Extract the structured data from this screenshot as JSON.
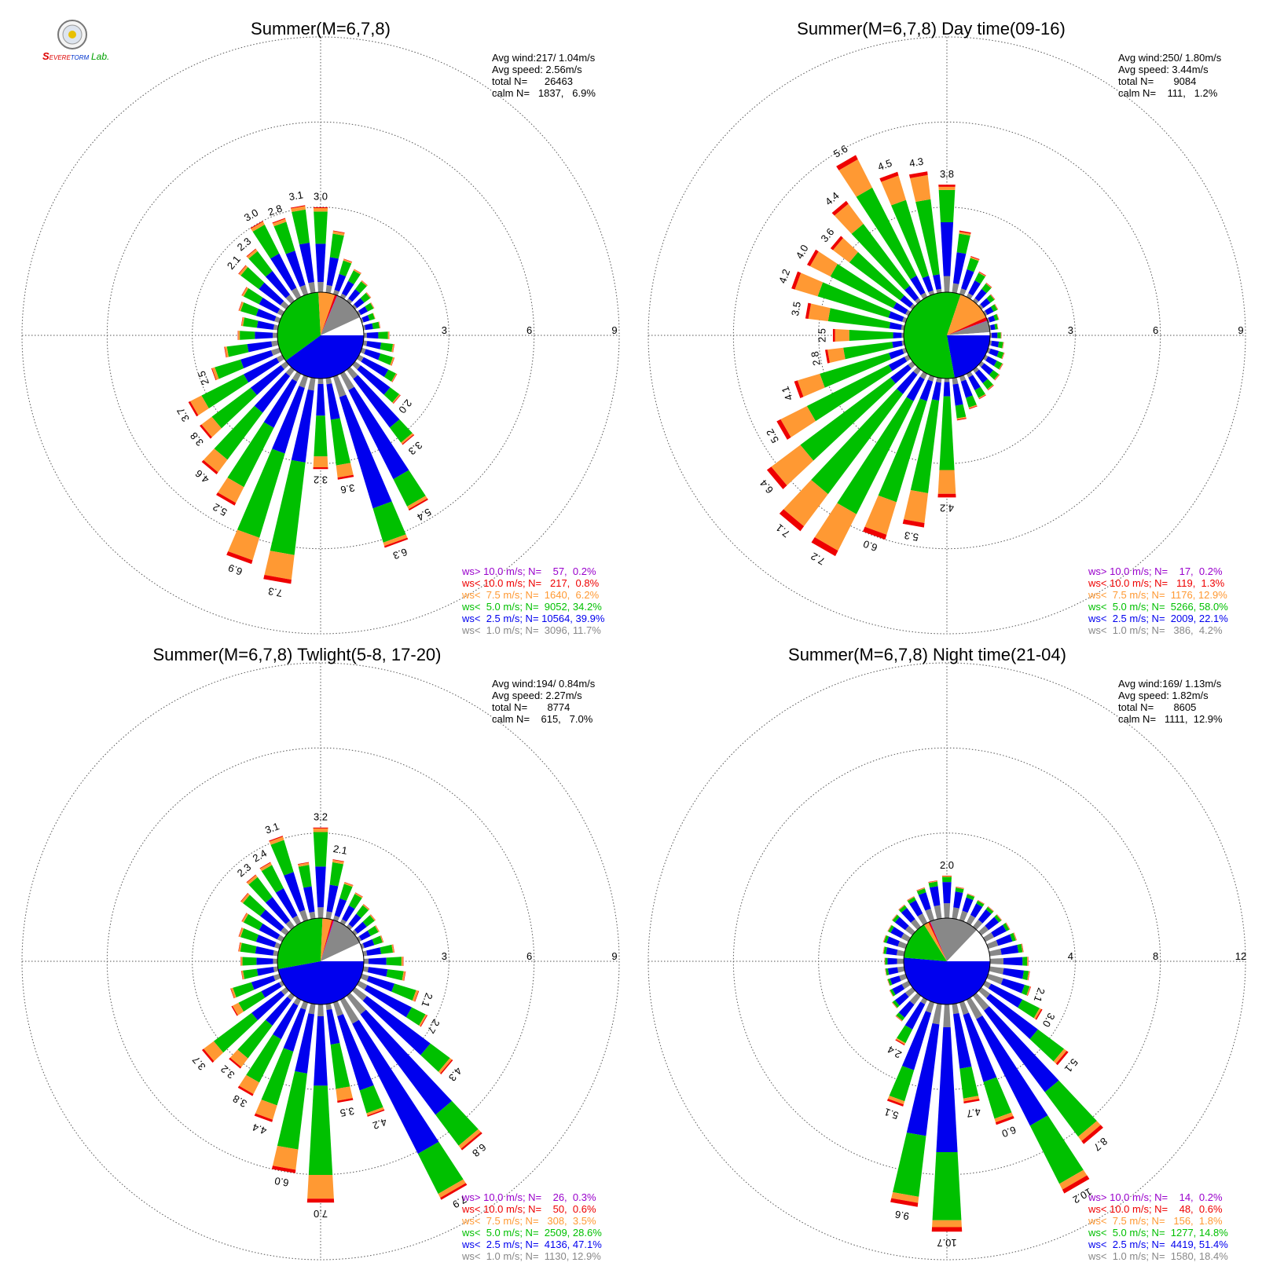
{
  "colors": {
    "calm_fill": "#ffffff",
    "ring": "#555555",
    "speed_bins": [
      "#888888",
      "#0000ee",
      "#00c000",
      "#ff9933",
      "#ee0000",
      "#9900cc"
    ]
  },
  "logo": {
    "line1": "EVERE",
    "line2": "TORM",
    "line3": "Lab.",
    "icon": "severe-storm-lab-seal-icon"
  },
  "chart_data": [
    {
      "type": "polar-bar",
      "title": "Summer(M=6,7,8)",
      "stats": [
        "Avg wind:217/ 1.04m/s",
        "Avg speed: 2.56m/s",
        "total N=      26463",
        "calm N=   1837,   6.9%"
      ],
      "rmax": 9,
      "ring_ticks": [
        "3",
        "6",
        "9"
      ],
      "pie": [
        39.9,
        34.2,
        6.2,
        0.8,
        0.2,
        11.7,
        6.9
      ],
      "legend": [
        "ws> 10.0 m/s; N=    57,  0.2%",
        "ws< 10.0 m/s; N=   217,  0.8%",
        "ws<  7.5 m/s; N=  1640,  6.2%",
        "ws<  5.0 m/s; N=  9052, 34.2%",
        "ws<  2.5 m/s; N= 10564, 39.9%",
        "ws<  1.0 m/s; N=  3096, 11.7%"
      ],
      "directions": [
        0,
        10,
        20,
        30,
        40,
        50,
        60,
        70,
        80,
        90,
        100,
        110,
        120,
        130,
        140,
        150,
        160,
        170,
        180,
        190,
        200,
        210,
        220,
        230,
        240,
        250,
        260,
        270,
        280,
        290,
        300,
        310,
        320,
        330,
        340,
        350
      ],
      "totals": [
        3.0,
        2.2,
        1.3,
        1.1,
        0.9,
        0.7,
        0.6,
        0.5,
        0.6,
        0.9,
        1.1,
        1.2,
        1.5,
        2.0,
        3.3,
        5.4,
        6.3,
        3.6,
        3.2,
        7.3,
        6.9,
        5.2,
        4.6,
        3.8,
        3.7,
        2.5,
        1.9,
        1.4,
        1.3,
        1.5,
        1.6,
        2.1,
        2.3,
        3.0,
        2.8,
        3.1
      ],
      "labels": [
        "3.0",
        "",
        "",
        "",
        "",
        "",
        "",
        "",
        "",
        "",
        "",
        "",
        "",
        "2.0",
        "3.3",
        "5.4",
        "6.3",
        "3.6",
        "3.2",
        "7.3",
        "6.9",
        "5.2",
        "4.6",
        "3.8",
        "3.7",
        "2.5",
        "",
        "",
        "",
        "",
        "",
        "2.1",
        "2.3",
        "3.0",
        "2.8",
        "3.1"
      ]
    },
    {
      "type": "polar-bar",
      "title": "Summer(M=6,7,8) Day time(09-16)",
      "stats": [
        "Avg wind:250/ 1.80m/s",
        "Avg speed: 3.44m/s",
        "total N=       9084",
        "calm N=    111,   1.2%"
      ],
      "rmax": 9,
      "ring_ticks": [
        "3",
        "6",
        "9"
      ],
      "pie": [
        22.1,
        58.0,
        12.9,
        1.3,
        0.2,
        4.2,
        1.2
      ],
      "legend": [
        "ws> 10.0 m/s; N=    17,  0.2%",
        "ws< 10.0 m/s; N=   119,  1.3%",
        "ws<  7.5 m/s; N=  1176, 12.9%",
        "ws<  5.0 m/s; N=  5266, 58.0%",
        "ws<  2.5 m/s; N=  2009, 22.1%",
        "ws<  1.0 m/s; N=   386,  4.2%"
      ],
      "directions": [
        0,
        10,
        20,
        30,
        40,
        50,
        60,
        70,
        80,
        90,
        100,
        110,
        120,
        130,
        140,
        150,
        160,
        170,
        180,
        190,
        200,
        210,
        220,
        230,
        240,
        250,
        260,
        270,
        280,
        290,
        300,
        310,
        320,
        330,
        340,
        350
      ],
      "totals": [
        3.8,
        2.2,
        1.4,
        1.0,
        0.8,
        0.6,
        0.5,
        0.4,
        0.3,
        0.4,
        0.5,
        0.6,
        0.7,
        0.8,
        0.9,
        1.0,
        1.2,
        1.5,
        4.2,
        5.3,
        6.0,
        7.2,
        7.1,
        6.4,
        5.2,
        4.1,
        2.8,
        2.5,
        3.5,
        4.2,
        4.0,
        3.6,
        4.4,
        5.6,
        4.5,
        4.3
      ],
      "labels": [
        "3.8",
        "",
        "",
        "",
        "",
        "",
        "",
        "",
        "",
        "",
        "",
        "",
        "",
        "",
        "",
        "",
        "",
        "",
        "4.2",
        "5.3",
        "6.0",
        "7.2",
        "7.1",
        "6.4",
        "5.2",
        "4.1",
        "2.8",
        "2.5",
        "3.5",
        "4.2",
        "4.0",
        "3.6",
        "4.4",
        "5.6",
        "4.5",
        "4.3"
      ]
    },
    {
      "type": "polar-bar",
      "title": "Summer(M=6,7,8) Twlight(5-8, 17-20)",
      "stats": [
        "Avg wind:194/ 0.84m/s",
        "Avg speed: 2.27m/s",
        "total N=       8774",
        "calm N=    615,   7.0%"
      ],
      "rmax": 9,
      "ring_ticks": [
        "3",
        "6",
        "9"
      ],
      "pie": [
        47.1,
        28.6,
        3.5,
        0.6,
        0.3,
        12.9,
        7.0
      ],
      "legend": [
        "ws> 10.0 m/s; N=    26,  0.3%",
        "ws< 10.0 m/s; N=    50,  0.6%",
        "ws<  7.5 m/s; N=   308,  3.5%",
        "ws<  5.0 m/s; N=  2509, 28.6%",
        "ws<  2.5 m/s; N=  4136, 47.1%",
        "ws<  1.0 m/s; N=  1130, 12.9%"
      ],
      "directions": [
        0,
        10,
        20,
        30,
        40,
        50,
        60,
        70,
        80,
        90,
        100,
        110,
        120,
        130,
        140,
        150,
        160,
        170,
        180,
        190,
        200,
        210,
        220,
        230,
        240,
        250,
        260,
        270,
        280,
        290,
        300,
        310,
        320,
        330,
        340,
        350
      ],
      "totals": [
        3.2,
        2.1,
        1.4,
        1.2,
        1.0,
        0.9,
        0.8,
        0.8,
        1.1,
        1.4,
        1.5,
        2.1,
        2.7,
        4.3,
        6.8,
        7.9,
        4.2,
        3.5,
        7.0,
        6.0,
        4.4,
        3.8,
        3.2,
        3.7,
        2.0,
        1.8,
        1.3,
        1.3,
        1.4,
        1.5,
        1.6,
        2.0,
        2.3,
        2.4,
        3.1,
        2.0
      ],
      "labels": [
        "3.2",
        "2.1",
        "",
        "",
        "",
        "",
        "",
        "",
        "",
        "",
        "",
        "2.1",
        "2.7",
        "4.3",
        "6.8",
        "7.9",
        "4.2",
        "3.5",
        "7.0",
        "6.0",
        "4.4",
        "3.8",
        "3.2",
        "3.7",
        "",
        "",
        "",
        "",
        "",
        "",
        "",
        "",
        "2.3",
        "2.4",
        "3.1",
        ""
      ]
    },
    {
      "type": "polar-bar",
      "title": "Summer(M=6,7,8) Night time(21-04)",
      "stats": [
        "Avg wind:169/ 1.13m/s",
        "Avg speed: 1.82m/s",
        "total N=       8605",
        "calm N=   1111,  12.9%"
      ],
      "rmax": 12,
      "ring_ticks": [
        "4",
        "8",
        "12"
      ],
      "pie": [
        51.4,
        14.8,
        1.8,
        0.6,
        0.2,
        18.4,
        12.9
      ],
      "legend": [
        "ws> 10.0 m/s; N=    14,  0.2%",
        "ws< 10.0 m/s; N=    48,  0.6%",
        "ws<  7.5 m/s; N=   156,  1.8%",
        "ws<  5.0 m/s; N=  1277, 14.8%",
        "ws<  2.5 m/s; N=  4419, 51.4%",
        "ws<  1.0 m/s; N=  1580, 18.4%"
      ],
      "directions": [
        0,
        10,
        20,
        30,
        40,
        50,
        60,
        70,
        80,
        90,
        100,
        110,
        120,
        130,
        140,
        150,
        160,
        170,
        180,
        190,
        200,
        210,
        220,
        230,
        240,
        250,
        260,
        270,
        280,
        290,
        300,
        310,
        320,
        330,
        340,
        350
      ],
      "totals": [
        2.0,
        1.5,
        1.3,
        1.2,
        1.2,
        1.2,
        1.3,
        1.4,
        1.6,
        1.8,
        1.9,
        2.1,
        3.0,
        5.1,
        8.7,
        10.2,
        6.0,
        4.7,
        10.7,
        9.6,
        5.1,
        2.4,
        1.5,
        1.2,
        1.0,
        0.9,
        0.9,
        0.9,
        1.0,
        1.1,
        1.1,
        1.2,
        1.3,
        1.4,
        1.6,
        1.8
      ],
      "labels": [
        "2.0",
        "",
        "",
        "",
        "",
        "",
        "",
        "",
        "",
        "",
        "",
        "2.1",
        "3.0",
        "5.1",
        "8.7",
        "10.2",
        "6.0",
        "4.7",
        "10.7",
        "9.6",
        "5.1",
        "2.4",
        "",
        "",
        "",
        "",
        "",
        "",
        "",
        "",
        "",
        "",
        "",
        "",
        "",
        ""
      ]
    }
  ]
}
